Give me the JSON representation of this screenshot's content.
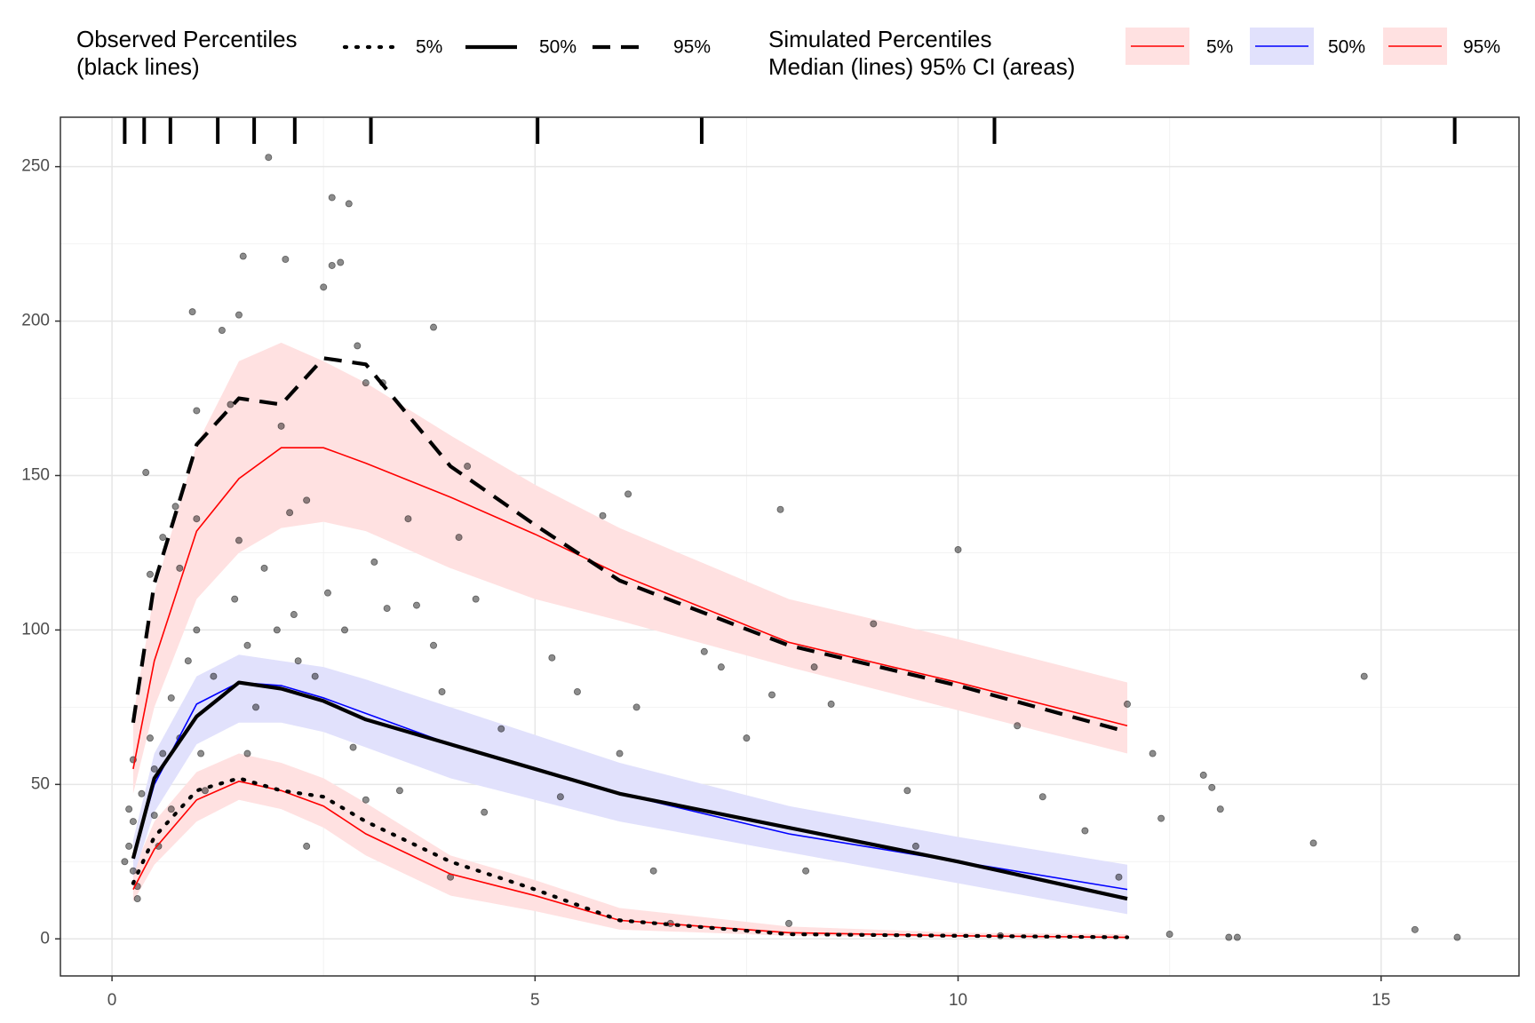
{
  "chart_data": {
    "type": "line",
    "xlim": [
      -0.61,
      16.63
    ],
    "ylim": [
      -12,
      266
    ],
    "xticks": [
      0,
      5,
      10,
      15
    ],
    "yticks": [
      0,
      50,
      100,
      150,
      200,
      250
    ],
    "grid": true,
    "x": [
      0.25,
      0.5,
      1,
      1.5,
      2,
      2.5,
      3,
      4,
      5,
      6,
      8,
      10,
      12
    ],
    "observed": {
      "title": "Observed Percentiles",
      "subtitle": "(black lines)",
      "color": "#000000",
      "series": [
        {
          "name": "5%",
          "dash": "dotted",
          "values": [
            18,
            33,
            48,
            52,
            48,
            46,
            38,
            25,
            16,
            6,
            1.5,
            1,
            0.5
          ]
        },
        {
          "name": "50%",
          "dash": "solid",
          "values": [
            26,
            52,
            72,
            83,
            81,
            77,
            71,
            63,
            55,
            47,
            36,
            25,
            13
          ]
        },
        {
          "name": "95%",
          "dash": "dashed",
          "values": [
            70,
            115,
            160,
            175,
            173,
            188,
            186,
            153,
            134,
            116,
            95,
            82,
            67
          ]
        }
      ]
    },
    "simulated": {
      "title": "Simulated Percentiles",
      "subtitle": "Median (lines) 95% CI (areas)",
      "series": [
        {
          "name": "5%",
          "color": "#ff0000",
          "fill": "#ffe1e1",
          "values": [
            16,
            29,
            45,
            51,
            48,
            43,
            34,
            21,
            14,
            6,
            2,
            1,
            0.5
          ],
          "lower": [
            12,
            24,
            38,
            45,
            42,
            36,
            27,
            14,
            9,
            3,
            1,
            0.5,
            0
          ],
          "upper": [
            22,
            38,
            54,
            60,
            57,
            52,
            44,
            27,
            19,
            10,
            4,
            2,
            1.5
          ]
        },
        {
          "name": "50%",
          "color": "#0000ff",
          "fill": "#e1e1fc",
          "values": [
            26,
            50,
            76,
            83,
            82,
            78,
            73,
            63,
            55,
            47,
            34,
            25,
            16
          ],
          "lower": [
            20,
            41,
            63,
            70,
            70,
            67,
            62,
            52,
            45,
            38,
            28,
            18,
            8
          ],
          "upper": [
            32,
            60,
            85,
            92,
            90,
            88,
            84,
            75,
            66,
            57,
            43,
            33,
            24
          ]
        },
        {
          "name": "95%",
          "color": "#ff0000",
          "fill": "#ffe1e1",
          "values": [
            55,
            90,
            132,
            149,
            159,
            159,
            154,
            143,
            131,
            118,
            96,
            83,
            69
          ],
          "lower": [
            47,
            75,
            110,
            125,
            133,
            135,
            132,
            120,
            110,
            103,
            88,
            74,
            60
          ],
          "upper": [
            72,
            112,
            160,
            187,
            193,
            187,
            180,
            163,
            147,
            133,
            110,
            97,
            83
          ]
        }
      ]
    },
    "points": {
      "color": "#000000",
      "x": [
        0.15,
        0.2,
        0.2,
        0.25,
        0.25,
        0.3,
        0.3,
        0.25,
        0.35,
        0.4,
        0.45,
        0.45,
        0.5,
        0.5,
        0.55,
        0.6,
        0.6,
        0.7,
        0.7,
        0.75,
        0.8,
        0.8,
        0.9,
        0.95,
        1.0,
        1.0,
        1.0,
        1.05,
        1.1,
        1.2,
        1.3,
        1.4,
        1.45,
        1.5,
        1.55,
        1.5,
        1.6,
        1.6,
        1.7,
        1.8,
        1.85,
        1.95,
        2.0,
        2.05,
        2.1,
        2.15,
        2.2,
        2.3,
        2.3,
        2.4,
        2.5,
        2.55,
        2.6,
        2.6,
        2.7,
        2.75,
        2.8,
        2.85,
        2.9,
        3.0,
        3.0,
        3.1,
        3.2,
        3.25,
        3.4,
        3.5,
        3.6,
        3.8,
        3.8,
        3.9,
        4.0,
        4.1,
        4.2,
        4.3,
        4.4,
        4.6,
        5.2,
        5.3,
        5.5,
        5.8,
        6.0,
        6.1,
        6.2,
        6.4,
        6.6,
        7.0,
        7.2,
        7.5,
        7.8,
        7.9,
        8.0,
        8.2,
        8.3,
        8.5,
        9.0,
        9.4,
        9.5,
        10.0,
        10.5,
        10.7,
        11.0,
        11.5,
        11.9,
        12.0,
        12.3,
        12.4,
        12.5,
        12.9,
        13.0,
        13.1,
        13.2,
        13.3,
        14.2,
        14.8,
        15.4,
        15.9
      ],
      "y": [
        25,
        30,
        42,
        22,
        38,
        13,
        17,
        58,
        47,
        151,
        118,
        65,
        55,
        40,
        30,
        130,
        60,
        78,
        42,
        140,
        120,
        65,
        90,
        203,
        171,
        136,
        100,
        60,
        48,
        85,
        197,
        173,
        110,
        202,
        221,
        129,
        95,
        60,
        75,
        120,
        253,
        100,
        166,
        220,
        138,
        105,
        90,
        142,
        30,
        85,
        211,
        112,
        240,
        218,
        219,
        100,
        238,
        62,
        192,
        180,
        45,
        122,
        180,
        107,
        48,
        136,
        108,
        198,
        95,
        80,
        20,
        130,
        153,
        110,
        41,
        68,
        91,
        46,
        80,
        137,
        60,
        144,
        75,
        22,
        5,
        93,
        88,
        65,
        79,
        139,
        5,
        22,
        88,
        76,
        102,
        48,
        30,
        126,
        1,
        69,
        46,
        35,
        20,
        76,
        60,
        39,
        1.5,
        53,
        49,
        42,
        0.5,
        0.5,
        31,
        85,
        3,
        0.5
      ]
    },
    "rug": {
      "x": [
        0.15,
        0.38,
        0.69,
        1.25,
        1.68,
        2.16,
        3.06,
        5.03,
        6.97,
        10.43,
        15.87
      ]
    }
  }
}
